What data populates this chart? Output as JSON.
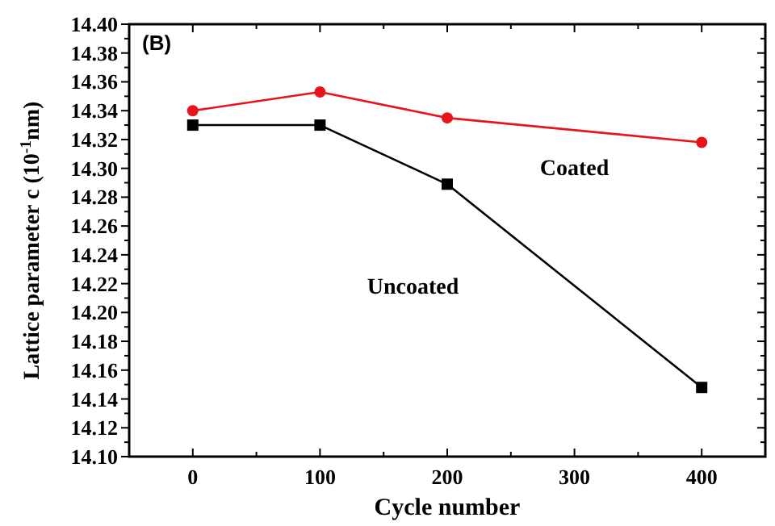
{
  "chart_data": {
    "type": "line",
    "xlabel": "Cycle number",
    "ylabel": "Lattice parameter c (10$^{-1}$nm)",
    "x": [
      0,
      100,
      200,
      400
    ],
    "series": [
      {
        "name": "Coated",
        "color": "#e8141c",
        "marker": "circle",
        "values": [
          14.34,
          14.353,
          14.335,
          14.318
        ]
      },
      {
        "name": "Uncoated",
        "color": "#000000",
        "marker": "square",
        "values": [
          14.33,
          14.33,
          14.289,
          14.148
        ]
      }
    ],
    "xlim": [
      -50,
      450
    ],
    "xticks": [
      0,
      100,
      200,
      300,
      400
    ],
    "ylim": [
      14.1,
      14.4
    ],
    "yticks": [
      {
        "value": 14.1,
        "label": "14.10"
      },
      {
        "value": 14.12,
        "label": "14.12"
      },
      {
        "value": 14.14,
        "label": "14.14"
      },
      {
        "value": 14.16,
        "label": "14.16"
      },
      {
        "value": 14.18,
        "label": "14.18"
      },
      {
        "value": 14.2,
        "label": "14.20"
      },
      {
        "value": 14.22,
        "label": "14.22"
      },
      {
        "value": 14.24,
        "label": "14.24"
      },
      {
        "value": 14.26,
        "label": "14.26"
      },
      {
        "value": 14.28,
        "label": "14.28"
      },
      {
        "value": 14.3,
        "label": "14.30"
      },
      {
        "value": 14.32,
        "label": "14.32"
      },
      {
        "value": 14.34,
        "label": "14.34"
      },
      {
        "value": 14.36,
        "label": "14.36"
      },
      {
        "value": 14.38,
        "label": "14.38"
      },
      {
        "value": 14.4,
        "label": "14.40"
      }
    ],
    "annotations": [
      "(B)"
    ],
    "grid": false
  }
}
